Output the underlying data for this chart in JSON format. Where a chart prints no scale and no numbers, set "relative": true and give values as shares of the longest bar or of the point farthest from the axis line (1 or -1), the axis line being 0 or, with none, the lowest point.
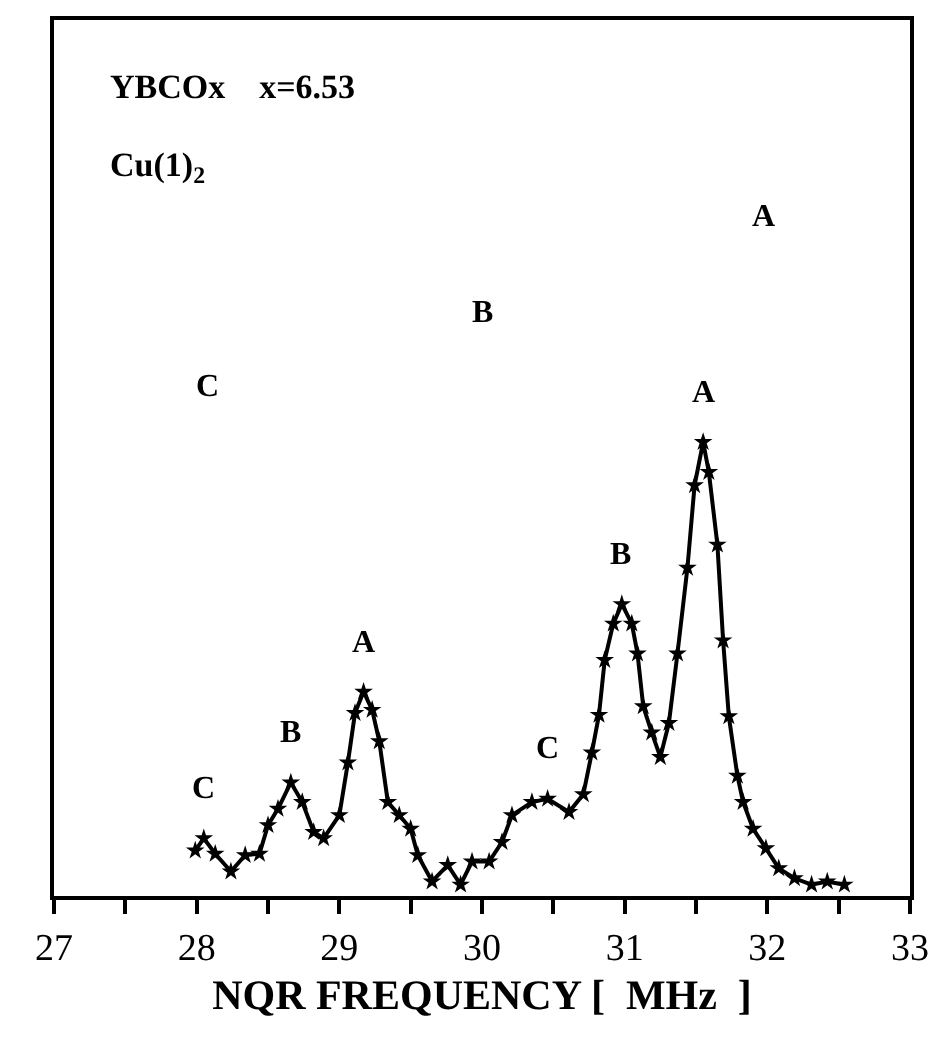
{
  "chart_data": {
    "type": "line",
    "relative": true,
    "marker": "star",
    "line_style": "solid",
    "xlabel": "NQR FREQUENCY [  MHz  ]",
    "xlim": [
      27,
      33
    ],
    "xticks": [
      27,
      {
        "value": 27.5,
        "label": null
      },
      28,
      {
        "value": 28.5,
        "label": null
      },
      29,
      {
        "value": 29.5,
        "label": null
      },
      30,
      {
        "value": 30.5,
        "label": null
      },
      31,
      {
        "value": 31.5,
        "label": null
      },
      32,
      {
        "value": 32.5,
        "label": null
      },
      33
    ],
    "tick_labels": "x",
    "series": [
      {
        "color": "#000000",
        "x": [
          27.99,
          28.05,
          28.13,
          28.24,
          28.34,
          28.44,
          28.5,
          28.57,
          28.66,
          28.74,
          28.82,
          28.89,
          29.0,
          29.06,
          29.11,
          29.17,
          29.23,
          29.28,
          29.34,
          29.42,
          29.5,
          29.55,
          29.65,
          29.76,
          29.85,
          29.93,
          30.05,
          30.14,
          30.21,
          30.35,
          30.46,
          30.61,
          30.71,
          30.77,
          30.82,
          30.86,
          30.92,
          30.98,
          31.05,
          31.09,
          31.13,
          31.19,
          31.25,
          31.31,
          31.37,
          31.44,
          31.49,
          31.55,
          31.59,
          31.65,
          31.69,
          31.73,
          31.79,
          31.83,
          31.9,
          31.99,
          32.08,
          32.19,
          32.31,
          32.42,
          32.54
        ],
        "values": [
          0.1,
          0.127,
          0.093,
          0.054,
          0.09,
          0.093,
          0.156,
          0.192,
          0.25,
          0.207,
          0.141,
          0.127,
          0.178,
          0.294,
          0.403,
          0.45,
          0.41,
          0.341,
          0.207,
          0.178,
          0.148,
          0.09,
          0.032,
          0.068,
          0.025,
          0.076,
          0.076,
          0.119,
          0.178,
          0.207,
          0.214,
          0.185,
          0.224,
          0.316,
          0.399,
          0.52,
          0.6,
          0.643,
          0.6,
          0.534,
          0.418,
          0.36,
          0.306,
          0.381,
          0.534,
          0.723,
          0.905,
          1.0,
          0.934,
          0.774,
          0.563,
          0.396,
          0.265,
          0.207,
          0.148,
          0.105,
          0.061,
          0.039,
          0.025,
          0.032,
          0.025
        ]
      }
    ],
    "annotations": [
      {
        "text": "C",
        "x": 28.05,
        "y": 0.127
      },
      {
        "text": "B",
        "x": 28.66,
        "y": 0.25
      },
      {
        "text": "A",
        "x": 29.17,
        "y": 0.45
      },
      {
        "text": "C",
        "x": 30.46,
        "y": 0.214
      },
      {
        "text": "B",
        "x": 30.98,
        "y": 0.643
      },
      {
        "text": "A",
        "x": 31.55,
        "y": 1.0
      },
      "YBCOx    x=6.53",
      "Cu(1)$_{2}$",
      "A",
      "B",
      "C"
    ]
  }
}
